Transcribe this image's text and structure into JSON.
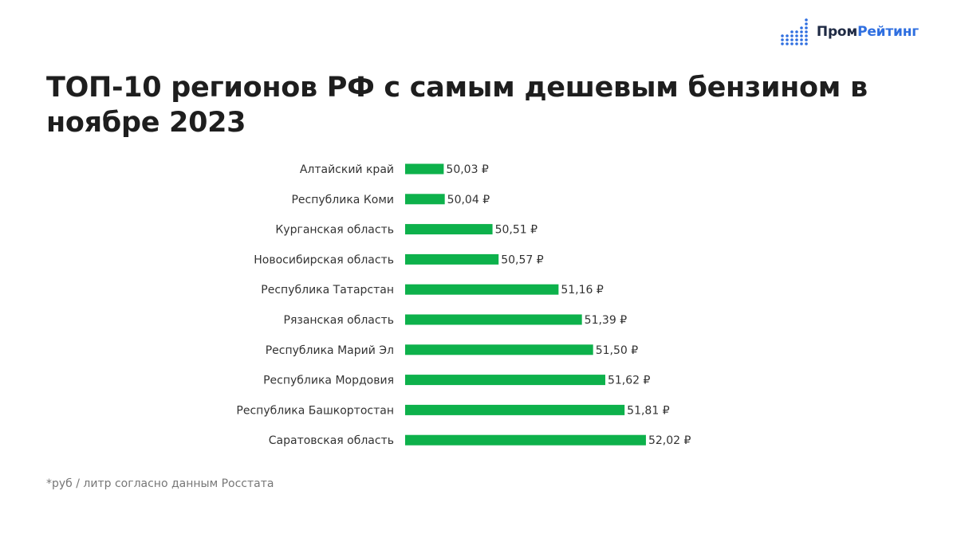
{
  "brand": {
    "name_part1": "Пром",
    "name_part2": "Рейтинг",
    "colors": {
      "dark": "#1f2a44",
      "accent": "#2f6fe0"
    }
  },
  "header": {
    "title": "ТОП-10 регионов РФ с самым дешевым бензином в ноябре 2023"
  },
  "footnote": "*руб / литр согласно данным Росстата",
  "colors": {
    "bar": "#0db14b",
    "text": "#333333"
  },
  "chart_data": {
    "type": "bar",
    "orientation": "horizontal",
    "categories": [
      "Алтайский край",
      "Республика Коми",
      "Курганская область",
      "Новосибирская область",
      "Республика Татарстан",
      "Рязанская область",
      "Республика Марий Эл",
      "Республика Мордовия",
      "Республика Башкортостан",
      "Саратовская область"
    ],
    "values": [
      50.03,
      50.04,
      50.51,
      50.57,
      51.16,
      51.39,
      51.5,
      51.62,
      51.81,
      52.02
    ],
    "value_labels": [
      "50,03 ₽",
      "50,04 ₽",
      "50,51 ₽",
      "50,57 ₽",
      "51,16 ₽",
      "51,39 ₽",
      "51,50 ₽",
      "51,62 ₽",
      "51,81 ₽",
      "52,02 ₽"
    ],
    "xlim": [
      49.65,
      52.02
    ],
    "grid": false,
    "legend": "none"
  }
}
